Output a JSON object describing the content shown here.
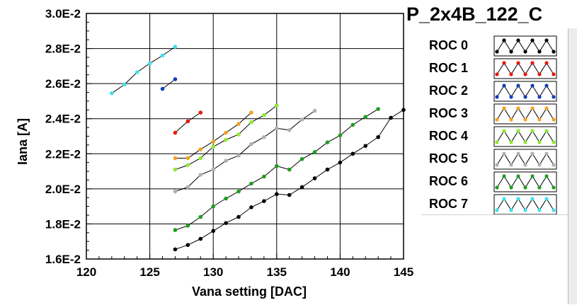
{
  "chart_data": {
    "type": "line",
    "title": "P_2x4B_122_C",
    "xlabel": "Vana setting [DAC]",
    "ylabel": "Iana [A]",
    "xlim": [
      120,
      145
    ],
    "ylim": [
      0.016,
      0.03
    ],
    "x_ticks": [
      120,
      125,
      130,
      135,
      140,
      145
    ],
    "x_tick_labels": [
      "120",
      "125",
      "130",
      "135",
      "140",
      "145"
    ],
    "y_ticks": [
      0.016,
      0.018,
      0.02,
      0.022,
      0.024,
      0.026,
      0.028,
      0.03
    ],
    "y_tick_labels": [
      "1.6E-2",
      "1.8E-2",
      "2.0E-2",
      "2.2E-2",
      "2.4E-2",
      "2.6E-2",
      "2.8E-2",
      "3.0E-2"
    ],
    "grid": true,
    "legend_position": "right",
    "series": [
      {
        "name": "ROC 0",
        "color": "#000000",
        "x": [
          127,
          128,
          129,
          130,
          131,
          132,
          133,
          134,
          135,
          136,
          137,
          138,
          139,
          140,
          141,
          142,
          143,
          144,
          145
        ],
        "y": [
          0.01655,
          0.0168,
          0.01715,
          0.0176,
          0.01805,
          0.0184,
          0.01895,
          0.0193,
          0.0197,
          0.01965,
          0.0201,
          0.0206,
          0.0211,
          0.0215,
          0.022,
          0.02245,
          0.02295,
          0.02405,
          0.0245
        ]
      },
      {
        "name": "ROC 1",
        "color": "#e8160c",
        "x": [
          127,
          128,
          129
        ],
        "y": [
          0.0232,
          0.02385,
          0.02435
        ]
      },
      {
        "name": "ROC 2",
        "color": "#1040b8",
        "x": [
          126,
          127
        ],
        "y": [
          0.0257,
          0.02625
        ]
      },
      {
        "name": "ROC 3",
        "color": "#f5a020",
        "x": [
          127,
          128,
          129,
          130,
          131,
          132,
          133
        ],
        "y": [
          0.02175,
          0.02175,
          0.02225,
          0.0227,
          0.0232,
          0.0237,
          0.02435
        ]
      },
      {
        "name": "ROC 4",
        "color": "#8ee830",
        "x": [
          127,
          128,
          129,
          130,
          131,
          132,
          133,
          134,
          135
        ],
        "y": [
          0.0211,
          0.02135,
          0.02175,
          0.0224,
          0.0228,
          0.0231,
          0.0238,
          0.0242,
          0.02475
        ]
      },
      {
        "name": "ROC 5",
        "color": "#b0b0b0",
        "x": [
          127,
          128,
          129,
          130,
          131,
          132,
          133,
          134,
          135,
          136,
          137,
          138
        ],
        "y": [
          0.01985,
          0.0201,
          0.0208,
          0.0211,
          0.0216,
          0.0219,
          0.02255,
          0.02295,
          0.02345,
          0.02335,
          0.02395,
          0.02445
        ]
      },
      {
        "name": "ROC 6",
        "color": "#1e9e1e",
        "x": [
          127,
          128,
          129,
          130,
          131,
          132,
          133,
          134,
          135,
          136,
          137,
          138,
          139,
          140,
          141,
          142,
          143
        ],
        "y": [
          0.01765,
          0.0179,
          0.0184,
          0.019,
          0.01945,
          0.01985,
          0.0203,
          0.0207,
          0.0213,
          0.0211,
          0.0217,
          0.0221,
          0.02265,
          0.02305,
          0.02365,
          0.0241,
          0.02455
        ]
      },
      {
        "name": "ROC 7",
        "color": "#40e0f0",
        "x": [
          122,
          123,
          124,
          125,
          126,
          127
        ],
        "y": [
          0.02545,
          0.02595,
          0.02665,
          0.02715,
          0.0276,
          0.0281
        ]
      }
    ]
  }
}
